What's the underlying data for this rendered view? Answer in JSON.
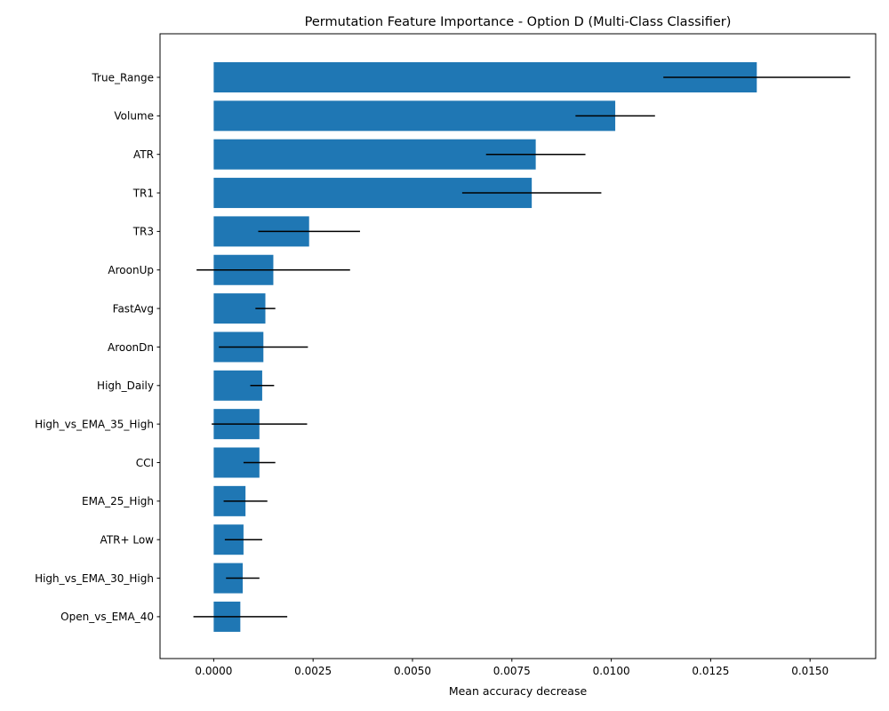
{
  "chart_data": {
    "type": "bar",
    "orientation": "horizontal",
    "title": "Permutation Feature Importance - Option D (Multi-Class Classifier)",
    "xlabel": "Mean accuracy decrease",
    "ylabel": "",
    "xlim": [
      -0.00135,
      0.01665
    ],
    "x_ticks": [
      0.0,
      0.0025,
      0.005,
      0.0075,
      0.01,
      0.0125,
      0.015
    ],
    "x_tick_labels": [
      "0.0000",
      "0.0025",
      "0.0050",
      "0.0075",
      "0.0100",
      "0.0125",
      "0.0150"
    ],
    "grid": false,
    "legend": "none",
    "bar_color": "#1f77b4",
    "error_color": "#000000",
    "categories": [
      "True_Range",
      "Volume",
      "ATR",
      "TR1",
      "TR3",
      "AroonUp",
      "FastAvg",
      "AroonDn",
      "High_Daily",
      "High_vs_EMA_35_High",
      "CCI",
      "EMA_25_High",
      "ATR+ Low",
      "High_vs_EMA_30_High",
      "Open_vs_EMA_40"
    ],
    "values": [
      0.01366,
      0.0101,
      0.0081,
      0.008,
      0.0024,
      0.0015,
      0.0013,
      0.00125,
      0.00122,
      0.00115,
      0.00115,
      0.0008,
      0.00075,
      0.00073,
      0.00067
    ],
    "errors": [
      0.00235,
      0.001,
      0.00125,
      0.00175,
      0.00128,
      0.00193,
      0.00025,
      0.00112,
      0.0003,
      0.0012,
      0.0004,
      0.00055,
      0.00047,
      0.00042,
      0.00118
    ]
  }
}
